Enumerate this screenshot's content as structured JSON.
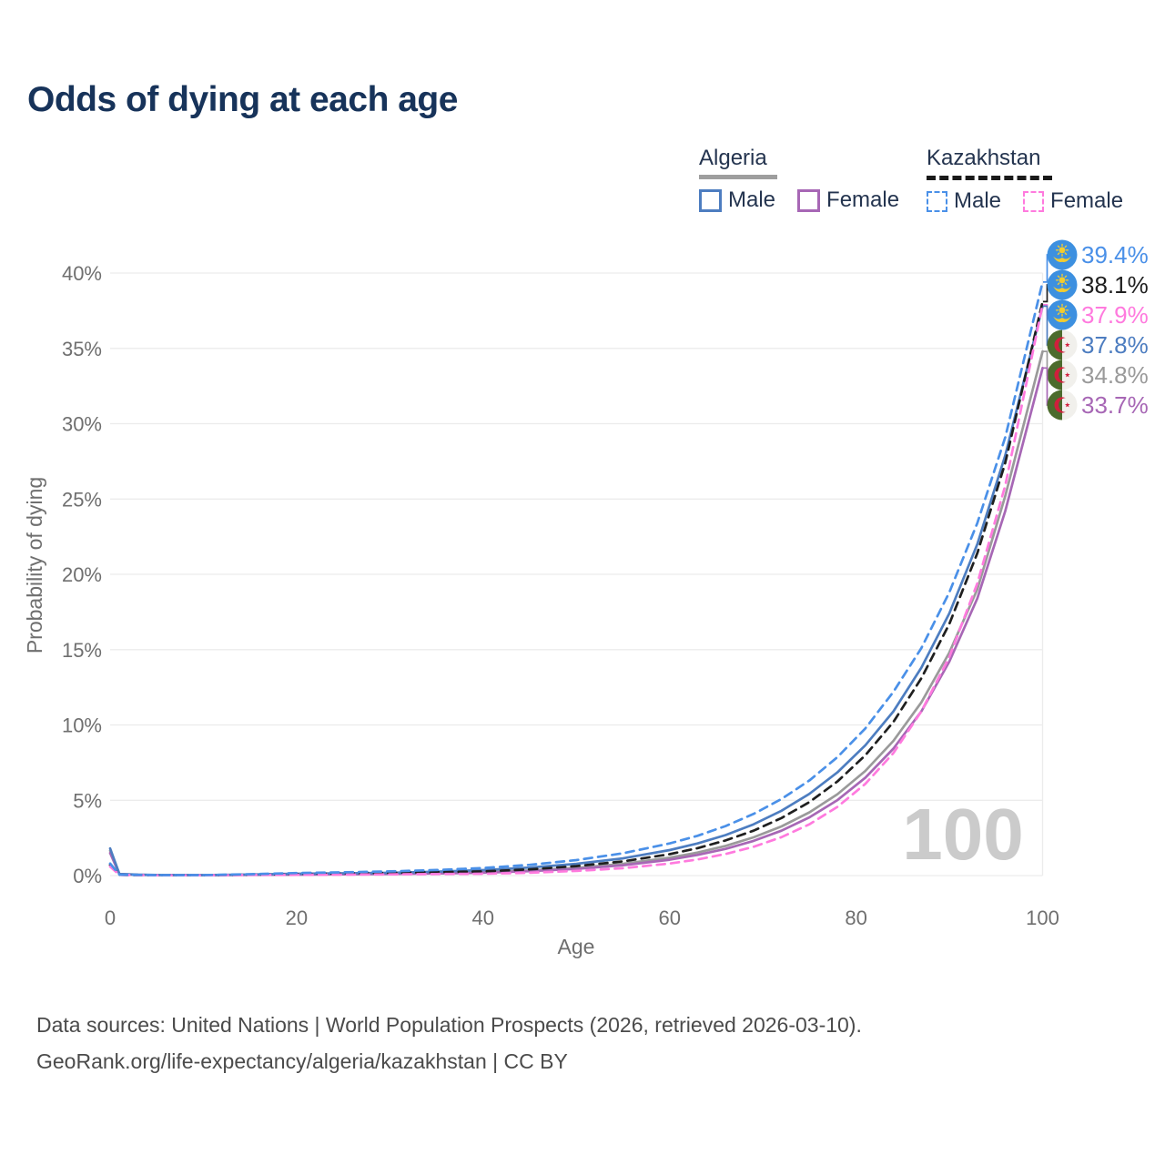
{
  "title": "Odds of dying at each age",
  "watermark": "100",
  "legend": {
    "groups": [
      {
        "country": "Algeria",
        "line": "solid",
        "underline_color": "#9e9e9e",
        "items": [
          {
            "label": "Male",
            "color": "#4d7dc0"
          },
          {
            "label": "Female",
            "color": "#a767b5"
          }
        ]
      },
      {
        "country": "Kazakhstan",
        "line": "dashed",
        "underline_color": "#1a1a1a",
        "items": [
          {
            "label": "Male",
            "color": "#4a90e8"
          },
          {
            "label": "Female",
            "color": "#ff7ade"
          }
        ]
      }
    ]
  },
  "footer": {
    "line1": "Data sources: United Nations | World Population Prospects (2026, retrieved 2026-03-10).",
    "line2": "GeoRank.org/life-expectancy/algeria/kazakhstan | CC BY"
  },
  "chart_data": {
    "type": "line",
    "title": "Odds of dying at each age",
    "xlabel": "Age",
    "ylabel": "Probability of dying",
    "xlim": [
      0,
      100
    ],
    "ylim": [
      0,
      40
    ],
    "grid": true,
    "units": "percent",
    "x_ticks": [
      0,
      20,
      40,
      60,
      80,
      100
    ],
    "y_ticks": [
      {
        "value": 0,
        "label": "0%"
      },
      {
        "value": 5,
        "label": "5%"
      },
      {
        "value": 10,
        "label": "10%"
      },
      {
        "value": 15,
        "label": "15%"
      },
      {
        "value": 20,
        "label": "20%"
      },
      {
        "value": 25,
        "label": "25%"
      },
      {
        "value": 30,
        "label": "30%"
      },
      {
        "value": 35,
        "label": "35%"
      },
      {
        "value": 40,
        "label": "40%"
      }
    ],
    "x": [
      0,
      1,
      3,
      5,
      10,
      15,
      20,
      25,
      30,
      35,
      40,
      45,
      50,
      55,
      60,
      63,
      66,
      69,
      72,
      75,
      78,
      81,
      84,
      87,
      90,
      93,
      96,
      100
    ],
    "series": [
      {
        "name": "Algeria Both sexes",
        "country": "Algeria",
        "sex": "Both sexes",
        "line": "solid",
        "color": "#9a9a9a",
        "values": [
          1.65,
          0.1,
          0.05,
          0.04,
          0.03,
          0.05,
          0.09,
          0.12,
          0.14,
          0.18,
          0.22,
          0.34,
          0.51,
          0.78,
          1.19,
          1.53,
          1.97,
          2.54,
          3.26,
          4.2,
          5.4,
          6.95,
          8.94,
          11.5,
          14.8,
          19.0,
          25.2,
          34.8
        ]
      },
      {
        "name": "Algeria Female",
        "country": "Algeria",
        "sex": "Female",
        "line": "solid",
        "color": "#a767b5",
        "values": [
          1.5,
          0.09,
          0.05,
          0.03,
          0.02,
          0.04,
          0.06,
          0.08,
          0.1,
          0.14,
          0.19,
          0.29,
          0.44,
          0.68,
          1.05,
          1.37,
          1.77,
          2.3,
          2.98,
          3.87,
          5.01,
          6.5,
          8.43,
          10.9,
          14.2,
          18.4,
          24.2,
          33.7
        ]
      },
      {
        "name": "Algeria Male",
        "country": "Algeria",
        "sex": "Male",
        "line": "solid",
        "color": "#4d7dc0",
        "values": [
          1.8,
          0.11,
          0.06,
          0.04,
          0.03,
          0.07,
          0.12,
          0.15,
          0.18,
          0.26,
          0.36,
          0.53,
          0.78,
          1.14,
          1.69,
          2.13,
          2.69,
          3.4,
          4.3,
          5.43,
          6.85,
          8.65,
          10.9,
          13.8,
          17.4,
          22.0,
          27.9,
          37.8
        ]
      },
      {
        "name": "Kazakhstan Both sexes",
        "country": "Kazakhstan",
        "sex": "Both sexes",
        "line": "dashed",
        "color": "#1f1f1f",
        "values": [
          0.7,
          0.05,
          0.03,
          0.025,
          0.02,
          0.06,
          0.11,
          0.14,
          0.18,
          0.23,
          0.28,
          0.41,
          0.63,
          0.94,
          1.42,
          1.82,
          2.33,
          2.98,
          3.82,
          4.88,
          6.25,
          7.99,
          10.2,
          13.1,
          16.7,
          21.4,
          27.4,
          38.1
        ]
      },
      {
        "name": "Kazakhstan Female",
        "country": "Kazakhstan",
        "sex": "Female",
        "line": "dashed",
        "color": "#ff7ade",
        "values": [
          0.6,
          0.05,
          0.03,
          0.02,
          0.02,
          0.04,
          0.05,
          0.06,
          0.08,
          0.1,
          0.12,
          0.19,
          0.31,
          0.49,
          0.8,
          1.07,
          1.43,
          1.91,
          2.55,
          3.41,
          4.56,
          6.09,
          8.13,
          10.9,
          14.5,
          19.4,
          25.9,
          37.9
        ]
      },
      {
        "name": "Kazakhstan Male",
        "country": "Kazakhstan",
        "sex": "Male",
        "line": "dashed",
        "color": "#4a90e8",
        "values": [
          0.8,
          0.06,
          0.04,
          0.03,
          0.03,
          0.09,
          0.17,
          0.22,
          0.28,
          0.37,
          0.5,
          0.71,
          1.03,
          1.48,
          2.13,
          2.64,
          3.29,
          4.09,
          5.08,
          6.32,
          7.86,
          9.77,
          12.2,
          15.1,
          18.8,
          23.4,
          29.1,
          39.4
        ]
      }
    ],
    "end_labels": [
      {
        "label": "39.4%",
        "end_pct": 39.4,
        "series": "Kazakhstan Male",
        "color": "#4a90e8",
        "flag": "kazakhstan"
      },
      {
        "label": "38.1%",
        "end_pct": 38.1,
        "series": "Kazakhstan Both sexes",
        "color": "#1f1f1f",
        "flag": "kazakhstan"
      },
      {
        "label": "37.9%",
        "end_pct": 37.9,
        "series": "Kazakhstan Female",
        "color": "#ff7ade",
        "flag": "kazakhstan"
      },
      {
        "label": "37.8%",
        "end_pct": 37.8,
        "series": "Algeria Male",
        "color": "#4d7dc0",
        "flag": "algeria"
      },
      {
        "label": "34.8%",
        "end_pct": 34.8,
        "series": "Algeria Both sexes",
        "color": "#9a9a9a",
        "flag": "algeria"
      },
      {
        "label": "33.7%",
        "end_pct": 33.7,
        "series": "Algeria Female",
        "color": "#a767b5",
        "flag": "algeria"
      }
    ],
    "legend_position": "top-right"
  }
}
